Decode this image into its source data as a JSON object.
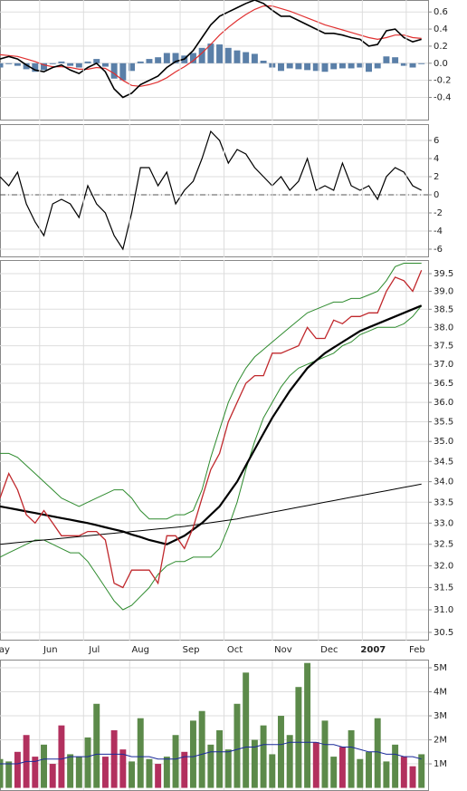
{
  "chart_data": [
    {
      "type": "line",
      "x": [
        0,
        4,
        8,
        12,
        16,
        20,
        24,
        28,
        32,
        36,
        40,
        44,
        48,
        52,
        56,
        60,
        64,
        68,
        72,
        76,
        80,
        84,
        88,
        92,
        96,
        100,
        104,
        108,
        112,
        116,
        120,
        124,
        128,
        132,
        136,
        140,
        144,
        148,
        152,
        156,
        160,
        164,
        168,
        172,
        176,
        180,
        184,
        188,
        192
      ],
      "xlim": [
        0,
        195
      ],
      "ylim": [
        -0.67,
        0.74
      ],
      "yticks": [
        {
          "value": 0.6,
          "label": "0.6"
        },
        {
          "value": 0.4,
          "label": "0.4"
        },
        {
          "value": 0.2,
          "label": "0.2"
        },
        {
          "value": 0,
          "label": "0.0"
        },
        {
          "value": -0.2,
          "label": "-0.2"
        },
        {
          "value": -0.4,
          "label": "-0.4"
        }
      ],
      "grid": true,
      "series": [
        {
          "type": "bar",
          "color": "#5a7fa8",
          "values": [
            -0.05,
            -0.01,
            -0.03,
            -0.07,
            -0.1,
            -0.08,
            -0.01,
            0.02,
            -0.03,
            -0.05,
            0.02,
            0.05,
            -0.04,
            -0.18,
            -0.2,
            -0.09,
            0.02,
            0.05,
            0.07,
            0.12,
            0.12,
            0.09,
            0.12,
            0.18,
            0.23,
            0.22,
            0.18,
            0.15,
            0.13,
            0.11,
            0.03,
            -0.05,
            -0.09,
            -0.06,
            -0.07,
            -0.08,
            -0.09,
            -0.1,
            -0.07,
            -0.06,
            -0.06,
            -0.05,
            -0.1,
            -0.06,
            0.08,
            0.07,
            -0.03,
            -0.05,
            -0.01
          ]
        },
        {
          "type": "line",
          "color": "#e03030",
          "width": 1.2,
          "values": [
            0.1,
            0.09,
            0.08,
            0.05,
            0.02,
            -0.02,
            -0.04,
            -0.04,
            -0.05,
            -0.07,
            -0.07,
            -0.05,
            -0.06,
            -0.12,
            -0.2,
            -0.26,
            -0.27,
            -0.25,
            -0.22,
            -0.17,
            -0.1,
            -0.04,
            0.03,
            0.12,
            0.22,
            0.33,
            0.42,
            0.5,
            0.57,
            0.63,
            0.67,
            0.67,
            0.64,
            0.61,
            0.57,
            0.53,
            0.49,
            0.45,
            0.42,
            0.39,
            0.36,
            0.33,
            0.3,
            0.28,
            0.3,
            0.33,
            0.33,
            0.3,
            0.29
          ]
        },
        {
          "type": "line",
          "color": "#000000",
          "width": 1.6,
          "values": [
            0.05,
            0.08,
            0.05,
            -0.02,
            -0.08,
            -0.1,
            -0.05,
            -0.02,
            -0.08,
            -0.12,
            -0.05,
            0.0,
            -0.1,
            -0.3,
            -0.4,
            -0.35,
            -0.25,
            -0.2,
            -0.15,
            -0.05,
            0.02,
            0.05,
            0.15,
            0.3,
            0.45,
            0.55,
            0.6,
            0.65,
            0.7,
            0.74,
            0.7,
            0.62,
            0.55,
            0.55,
            0.5,
            0.45,
            0.4,
            0.35,
            0.35,
            0.33,
            0.3,
            0.28,
            0.2,
            0.22,
            0.38,
            0.4,
            0.3,
            0.25,
            0.28
          ]
        }
      ]
    },
    {
      "type": "line",
      "x": [
        0,
        4,
        8,
        12,
        16,
        20,
        24,
        28,
        32,
        36,
        40,
        44,
        48,
        52,
        56,
        60,
        64,
        68,
        72,
        76,
        80,
        84,
        88,
        92,
        96,
        100,
        104,
        108,
        112,
        116,
        120,
        124,
        128,
        132,
        136,
        140,
        144,
        148,
        152,
        156,
        160,
        164,
        168,
        172,
        176,
        180,
        184,
        188,
        192
      ],
      "xlim": [
        0,
        195
      ],
      "ylim": [
        -6.9,
        7.8
      ],
      "yticks": [
        6,
        4,
        2,
        0,
        -2,
        -4,
        -6
      ],
      "grid": true,
      "reference_line": 0,
      "series": [
        {
          "type": "line",
          "color": "#000000",
          "width": 1.2,
          "values": [
            2,
            1,
            2.5,
            -1,
            -3,
            -4.5,
            -1,
            -0.5,
            -1,
            -2.5,
            1,
            -1,
            -2,
            -4.5,
            -6,
            -2,
            3,
            3,
            1,
            2.5,
            -1,
            0.5,
            1.5,
            4,
            7,
            6,
            3.5,
            5,
            4.5,
            3,
            2,
            1,
            2,
            0.5,
            1.5,
            4,
            0.5,
            1,
            0.5,
            3.5,
            1,
            0.5,
            1,
            -0.5,
            2,
            3,
            2.5,
            1,
            0.5
          ]
        }
      ]
    },
    {
      "type": "line",
      "log_scale": true,
      "x": [
        0,
        4,
        8,
        12,
        16,
        20,
        24,
        28,
        32,
        36,
        40,
        44,
        48,
        52,
        56,
        60,
        64,
        68,
        72,
        76,
        80,
        84,
        88,
        92,
        96,
        100,
        104,
        108,
        112,
        116,
        120,
        124,
        128,
        132,
        136,
        140,
        144,
        148,
        152,
        156,
        160,
        164,
        168,
        172,
        176,
        180,
        184,
        188,
        192
      ],
      "xlim": [
        0,
        195
      ],
      "ylim": [
        30.32,
        39.89
      ],
      "yticks": [
        39.5,
        {
          "value": 39,
          "label": "39.0"
        },
        38.5,
        {
          "value": 38,
          "label": "38.0"
        },
        37.5,
        {
          "value": 37,
          "label": "37.0"
        },
        36.5,
        {
          "value": 36,
          "label": "36.0"
        },
        35.5,
        {
          "value": 35,
          "label": "35.0"
        },
        34.5,
        {
          "value": 34,
          "label": "34.0"
        },
        33.5,
        {
          "value": 33,
          "label": "33.0"
        },
        32.5,
        {
          "value": 32,
          "label": "32.0"
        },
        31.5,
        {
          "value": 31,
          "label": "31.0"
        },
        30.5
      ],
      "xticks": [
        {
          "value": 2,
          "label": "ay"
        },
        {
          "value": 23,
          "label": "Jun"
        },
        {
          "value": 43,
          "label": "Jul"
        },
        {
          "value": 64,
          "label": "Aug"
        },
        {
          "value": 87,
          "label": "Sep"
        },
        {
          "value": 107,
          "label": "Oct"
        },
        {
          "value": 129,
          "label": "Nov"
        },
        {
          "value": 150,
          "label": "Dec"
        },
        {
          "value": 170,
          "label": "2007"
        },
        {
          "value": 190,
          "label": "Feb"
        }
      ],
      "grid": true,
      "series": [
        {
          "type": "line",
          "color": "#2e8b2e",
          "width": 1,
          "values": [
            34.7,
            34.7,
            34.6,
            34.4,
            34.2,
            34.0,
            33.8,
            33.6,
            33.5,
            33.4,
            33.5,
            33.6,
            33.7,
            33.8,
            33.8,
            33.6,
            33.3,
            33.1,
            33.1,
            33.1,
            33.2,
            33.2,
            33.3,
            33.8,
            34.6,
            35.3,
            36.0,
            36.5,
            36.9,
            37.2,
            37.4,
            37.6,
            37.8,
            38.0,
            38.2,
            38.4,
            38.5,
            38.6,
            38.7,
            38.7,
            38.8,
            38.8,
            38.9,
            39.0,
            39.3,
            39.7,
            39.8,
            39.8,
            39.8
          ]
        },
        {
          "type": "line",
          "color": "#2e8b2e",
          "width": 1,
          "values": [
            32.2,
            32.3,
            32.4,
            32.5,
            32.6,
            32.6,
            32.5,
            32.4,
            32.3,
            32.3,
            32.1,
            31.8,
            31.5,
            31.2,
            31.0,
            31.1,
            31.3,
            31.5,
            31.8,
            32.0,
            32.1,
            32.1,
            32.2,
            32.2,
            32.2,
            32.4,
            32.9,
            33.5,
            34.3,
            35.0,
            35.6,
            36.0,
            36.4,
            36.7,
            36.9,
            37.0,
            37.1,
            37.2,
            37.3,
            37.5,
            37.6,
            37.8,
            37.9,
            38.0,
            38.0,
            38.0,
            38.1,
            38.3,
            38.6
          ]
        },
        {
          "type": "line",
          "color": "#000000",
          "width": 1,
          "values": [
            32.5,
            32.52,
            32.54,
            32.56,
            32.58,
            32.6,
            32.62,
            32.64,
            32.66,
            32.68,
            32.7,
            32.72,
            32.74,
            32.76,
            32.78,
            32.8,
            32.82,
            32.84,
            32.86,
            32.88,
            32.9,
            32.92,
            32.95,
            32.98,
            33.01,
            33.04,
            33.07,
            33.1,
            33.14,
            33.18,
            33.22,
            33.26,
            33.3,
            33.34,
            33.38,
            33.42,
            33.46,
            33.5,
            33.54,
            33.58,
            33.62,
            33.66,
            33.7,
            33.74,
            33.78,
            33.82,
            33.86,
            33.9,
            33.94
          ]
        },
        {
          "type": "line",
          "color": "#000000",
          "width": 2.2,
          "values": [
            33.4,
            33.36,
            33.32,
            33.28,
            33.24,
            33.2,
            33.16,
            33.12,
            33.08,
            33.04,
            33.0,
            32.95,
            32.9,
            32.85,
            32.8,
            32.73,
            32.67,
            32.6,
            32.55,
            32.5,
            32.6,
            32.7,
            32.85,
            33.0,
            33.2,
            33.4,
            33.7,
            34.0,
            34.4,
            34.8,
            35.2,
            35.6,
            35.95,
            36.3,
            36.6,
            36.9,
            37.1,
            37.3,
            37.45,
            37.6,
            37.75,
            37.9,
            38.0,
            38.1,
            38.2,
            38.3,
            38.4,
            38.5,
            38.6
          ]
        },
        {
          "type": "line",
          "color": "#c0282c",
          "width": 1.3,
          "values": [
            33.6,
            34.2,
            33.8,
            33.2,
            33.0,
            33.3,
            33.0,
            32.7,
            32.7,
            32.7,
            32.8,
            32.8,
            32.6,
            31.6,
            31.5,
            31.9,
            31.9,
            31.9,
            31.6,
            32.7,
            32.7,
            32.4,
            32.9,
            33.6,
            34.3,
            34.7,
            35.5,
            36.0,
            36.5,
            36.7,
            36.7,
            37.3,
            37.3,
            37.4,
            37.5,
            38.0,
            37.7,
            37.7,
            38.2,
            38.1,
            38.3,
            38.3,
            38.4,
            38.4,
            39.0,
            39.4,
            39.3,
            39.0,
            39.6
          ]
        }
      ]
    },
    {
      "type": "bar",
      "x": [
        0,
        4,
        8,
        12,
        16,
        20,
        24,
        28,
        32,
        36,
        40,
        44,
        48,
        52,
        56,
        60,
        64,
        68,
        72,
        76,
        80,
        84,
        88,
        92,
        96,
        100,
        104,
        108,
        112,
        116,
        120,
        124,
        128,
        132,
        136,
        140,
        144,
        148,
        152,
        156,
        160,
        164,
        168,
        172,
        176,
        180,
        184,
        188,
        192
      ],
      "xlim": [
        0,
        195
      ],
      "ylim": [
        -130000,
        5340000
      ],
      "yticks": [
        {
          "value": 5000000,
          "label": "5M"
        },
        {
          "value": 4000000,
          "label": "4M"
        },
        {
          "value": 3000000,
          "label": "3M"
        },
        {
          "value": 2000000,
          "label": "2M"
        },
        {
          "value": 1000000,
          "label": "1M"
        }
      ],
      "grid": true,
      "up_color": "#5c8a4a",
      "down_color": "#b2305e",
      "series": [
        {
          "type": "bar",
          "values": [
            1200000,
            1100000,
            1500000,
            2200000,
            1300000,
            1800000,
            1000000,
            2600000,
            1400000,
            1300000,
            2100000,
            3500000,
            1300000,
            2400000,
            1600000,
            1100000,
            2900000,
            1200000,
            1000000,
            1300000,
            2200000,
            1500000,
            2800000,
            3200000,
            1800000,
            2400000,
            1600000,
            3500000,
            4800000,
            2000000,
            2600000,
            1400000,
            3000000,
            2200000,
            4200000,
            5200000,
            1900000,
            2800000,
            1300000,
            1700000,
            2400000,
            1200000,
            1500000,
            2900000,
            1100000,
            1800000,
            1300000,
            900000,
            1400000
          ]
        },
        {
          "type": "line",
          "color": "#1a2a9a",
          "width": 1,
          "values": [
            1000000,
            1000000,
            1000000,
            1100000,
            1100000,
            1200000,
            1200000,
            1200000,
            1300000,
            1300000,
            1300000,
            1400000,
            1400000,
            1400000,
            1400000,
            1300000,
            1300000,
            1300000,
            1200000,
            1200000,
            1200000,
            1300000,
            1300000,
            1400000,
            1500000,
            1500000,
            1500000,
            1600000,
            1700000,
            1700000,
            1800000,
            1800000,
            1800000,
            1900000,
            1900000,
            1900000,
            1900000,
            1800000,
            1800000,
            1700000,
            1700000,
            1600000,
            1500000,
            1500000,
            1400000,
            1400000,
            1300000,
            1300000,
            1200000
          ]
        }
      ]
    }
  ]
}
